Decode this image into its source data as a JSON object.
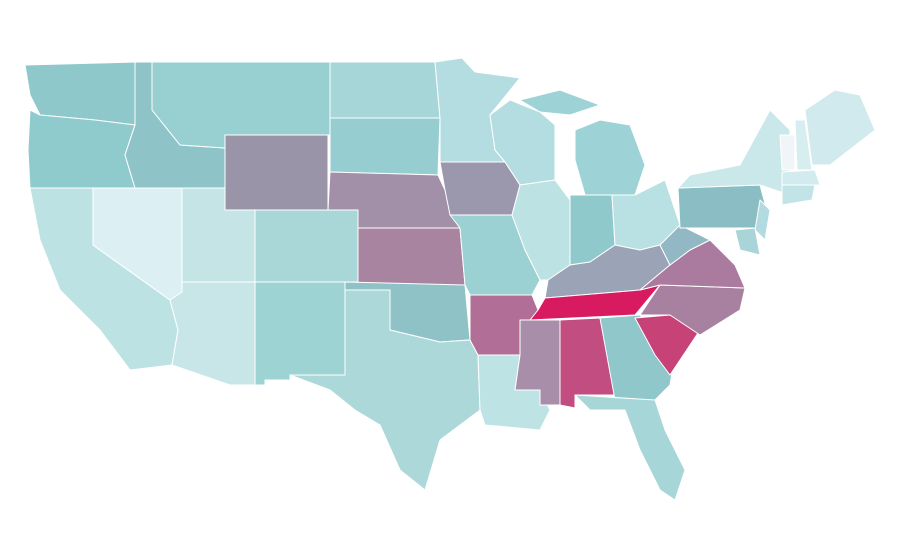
{
  "map": {
    "regions": [
      {
        "color": "#8ec8cb"
      },
      {
        "color": "#8fcacd"
      },
      {
        "color": "#bde2e4"
      },
      {
        "color": "#dcf0f4"
      },
      {
        "color": "#8ec3c7"
      },
      {
        "color": "#98cfd1"
      },
      {
        "color": "#9a94a8"
      },
      {
        "color": "#c4e4e5"
      },
      {
        "color": "#a9d7d8"
      },
      {
        "color": "#c8e6e8"
      },
      {
        "color": "#9ed3d4"
      },
      {
        "color": "#a7d6d8"
      },
      {
        "color": "#96cdd0"
      },
      {
        "color": "#a290a8"
      },
      {
        "color": "#a884a0"
      },
      {
        "color": "#8fc2c6"
      },
      {
        "color": "#acd8da"
      },
      {
        "color": "#b3dde0"
      },
      {
        "color": "#9b98ad"
      },
      {
        "color": "#9bd1d2"
      },
      {
        "color": "#b16f97"
      },
      {
        "color": "#bde3e5"
      },
      {
        "color": "#b3dde0"
      },
      {
        "color": "#bde2e4"
      },
      {
        "color": "#9dd3d6"
      },
      {
        "color": "#9dd3d6"
      },
      {
        "color": "#8fc9cc"
      },
      {
        "color": "#b9e0e2"
      },
      {
        "color": "#9ba3b7"
      },
      {
        "color": "#d81b60"
      },
      {
        "color": "#a98ea9"
      },
      {
        "color": "#c24d80"
      },
      {
        "color": "#8fc7ca"
      },
      {
        "color": "#a6d6d8"
      },
      {
        "color": "#c74377"
      },
      {
        "color": "#a881a0"
      },
      {
        "color": "#ab7b9f"
      },
      {
        "color": "#91b8c4"
      },
      {
        "color": "#8bbec4"
      },
      {
        "color": "#cae7ea"
      },
      {
        "color": "#b1dbe0"
      },
      {
        "color": "#a9d5d8"
      },
      {
        "color": "#f0f6f7"
      },
      {
        "color": "#d7eef1"
      },
      {
        "color": "#d0eaed"
      },
      {
        "color": "#d2ebee"
      },
      {
        "color": "#c2e4e6"
      }
    ]
  }
}
